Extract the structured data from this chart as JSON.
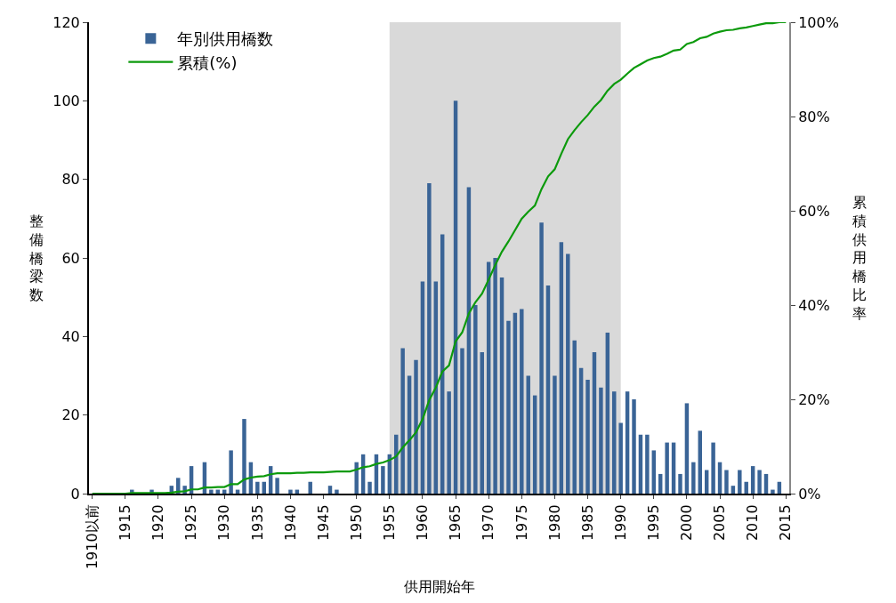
{
  "chart_data": {
    "type": "bar",
    "xlabel": "供用開始年",
    "ylabel": "整備橋梁数",
    "y2label": "累積供用橋比率",
    "categories": [
      "1910以前",
      null,
      null,
      null,
      null,
      "1915",
      null,
      null,
      null,
      null,
      "1920",
      null,
      null,
      null,
      null,
      "1925",
      null,
      null,
      null,
      null,
      "1930",
      null,
      null,
      null,
      null,
      "1935",
      null,
      null,
      null,
      null,
      "1940",
      null,
      null,
      null,
      null,
      "1945",
      null,
      null,
      null,
      null,
      "1950",
      null,
      null,
      null,
      null,
      "1955",
      null,
      null,
      null,
      null,
      "1960",
      null,
      null,
      null,
      null,
      "1965",
      null,
      null,
      null,
      null,
      "1970",
      null,
      null,
      null,
      null,
      "1975",
      null,
      null,
      null,
      null,
      "1980",
      null,
      null,
      null,
      null,
      "1985",
      null,
      null,
      null,
      null,
      "1990",
      null,
      null,
      null,
      null,
      "1995",
      null,
      null,
      null,
      null,
      "2000",
      null,
      null,
      null,
      null,
      "2005",
      null,
      null,
      null,
      null,
      "2010",
      null,
      null,
      null,
      null,
      "2015"
    ],
    "series": [
      {
        "name": "年別供用橋数",
        "color": "#3a6496",
        "values": [
          0,
          0,
          0,
          0,
          0,
          0,
          1,
          0,
          0,
          1,
          0,
          0,
          2,
          4,
          2,
          7,
          0,
          8,
          1,
          1,
          1,
          11,
          1,
          19,
          8,
          3,
          3,
          7,
          4,
          0,
          1,
          1,
          0,
          3,
          0,
          0,
          2,
          1,
          0,
          0,
          8,
          10,
          3,
          10,
          7,
          10,
          15,
          37,
          30,
          34,
          54,
          79,
          54,
          66,
          26,
          100,
          37,
          78,
          48,
          36,
          59,
          60,
          55,
          44,
          46,
          47,
          30,
          25,
          69,
          53,
          30,
          64,
          61,
          39,
          32,
          29,
          36,
          27,
          41,
          26,
          18,
          26,
          24,
          15,
          15,
          11,
          5,
          13,
          13,
          5,
          23,
          8,
          16,
          6,
          13,
          8,
          6,
          2,
          6,
          3,
          7,
          6,
          5,
          1,
          3,
          0
        ]
      },
      {
        "name": "累積(%)",
        "type": "line",
        "axis": "y2",
        "color": "#0c9a0c",
        "values": [
          0,
          0,
          0,
          0,
          0,
          0,
          0.1,
          0.1,
          0.1,
          0.1,
          0.1,
          0.1,
          0.2,
          0.4,
          0.5,
          0.9,
          0.9,
          1.3,
          1.3,
          1.4,
          1.4,
          2.0,
          2.0,
          3.0,
          3.4,
          3.6,
          3.7,
          4.1,
          4.3,
          4.3,
          4.3,
          4.4,
          4.4,
          4.5,
          4.5,
          4.5,
          4.6,
          4.7,
          4.7,
          4.7,
          5.1,
          5.6,
          5.8,
          6.3,
          6.6,
          7.1,
          7.9,
          9.8,
          11.3,
          13.0,
          15.8,
          19.8,
          22.5,
          25.9,
          27.2,
          32.3,
          34.2,
          38.2,
          40.6,
          42.4,
          45.4,
          48.5,
          51.3,
          53.5,
          55.9,
          58.3,
          59.8,
          61.1,
          64.6,
          67.3,
          68.8,
          72.1,
          75.2,
          77.1,
          78.8,
          80.3,
          82.1,
          83.5,
          85.5,
          86.9,
          87.8,
          89.1,
          90.3,
          91.1,
          91.9,
          92.4,
          92.7,
          93.3,
          94.0,
          94.2,
          95.4,
          95.8,
          96.6,
          96.9,
          97.6,
          98.0,
          98.3,
          98.4,
          98.7,
          98.9,
          99.2,
          99.5,
          99.8,
          99.8,
          100,
          100
        ]
      }
    ],
    "ylim": [
      0,
      120
    ],
    "yticks": [
      0,
      20,
      40,
      60,
      80,
      100,
      120
    ],
    "y2lim": [
      0,
      100
    ],
    "y2ticks": [
      {
        "value": 0,
        "label": "0%"
      },
      {
        "value": 20,
        "label": "20%"
      },
      {
        "value": 40,
        "label": "40%"
      },
      {
        "value": 60,
        "label": "60%"
      },
      {
        "value": 80,
        "label": "80%"
      },
      {
        "value": 100,
        "label": "100%"
      }
    ],
    "bands": [
      {
        "axis": "x",
        "from": "1955",
        "to": "1990",
        "color": "#d9d9d9"
      }
    ],
    "grid": false,
    "legend": "top left",
    "marker": "none",
    "line_style": "solid"
  }
}
